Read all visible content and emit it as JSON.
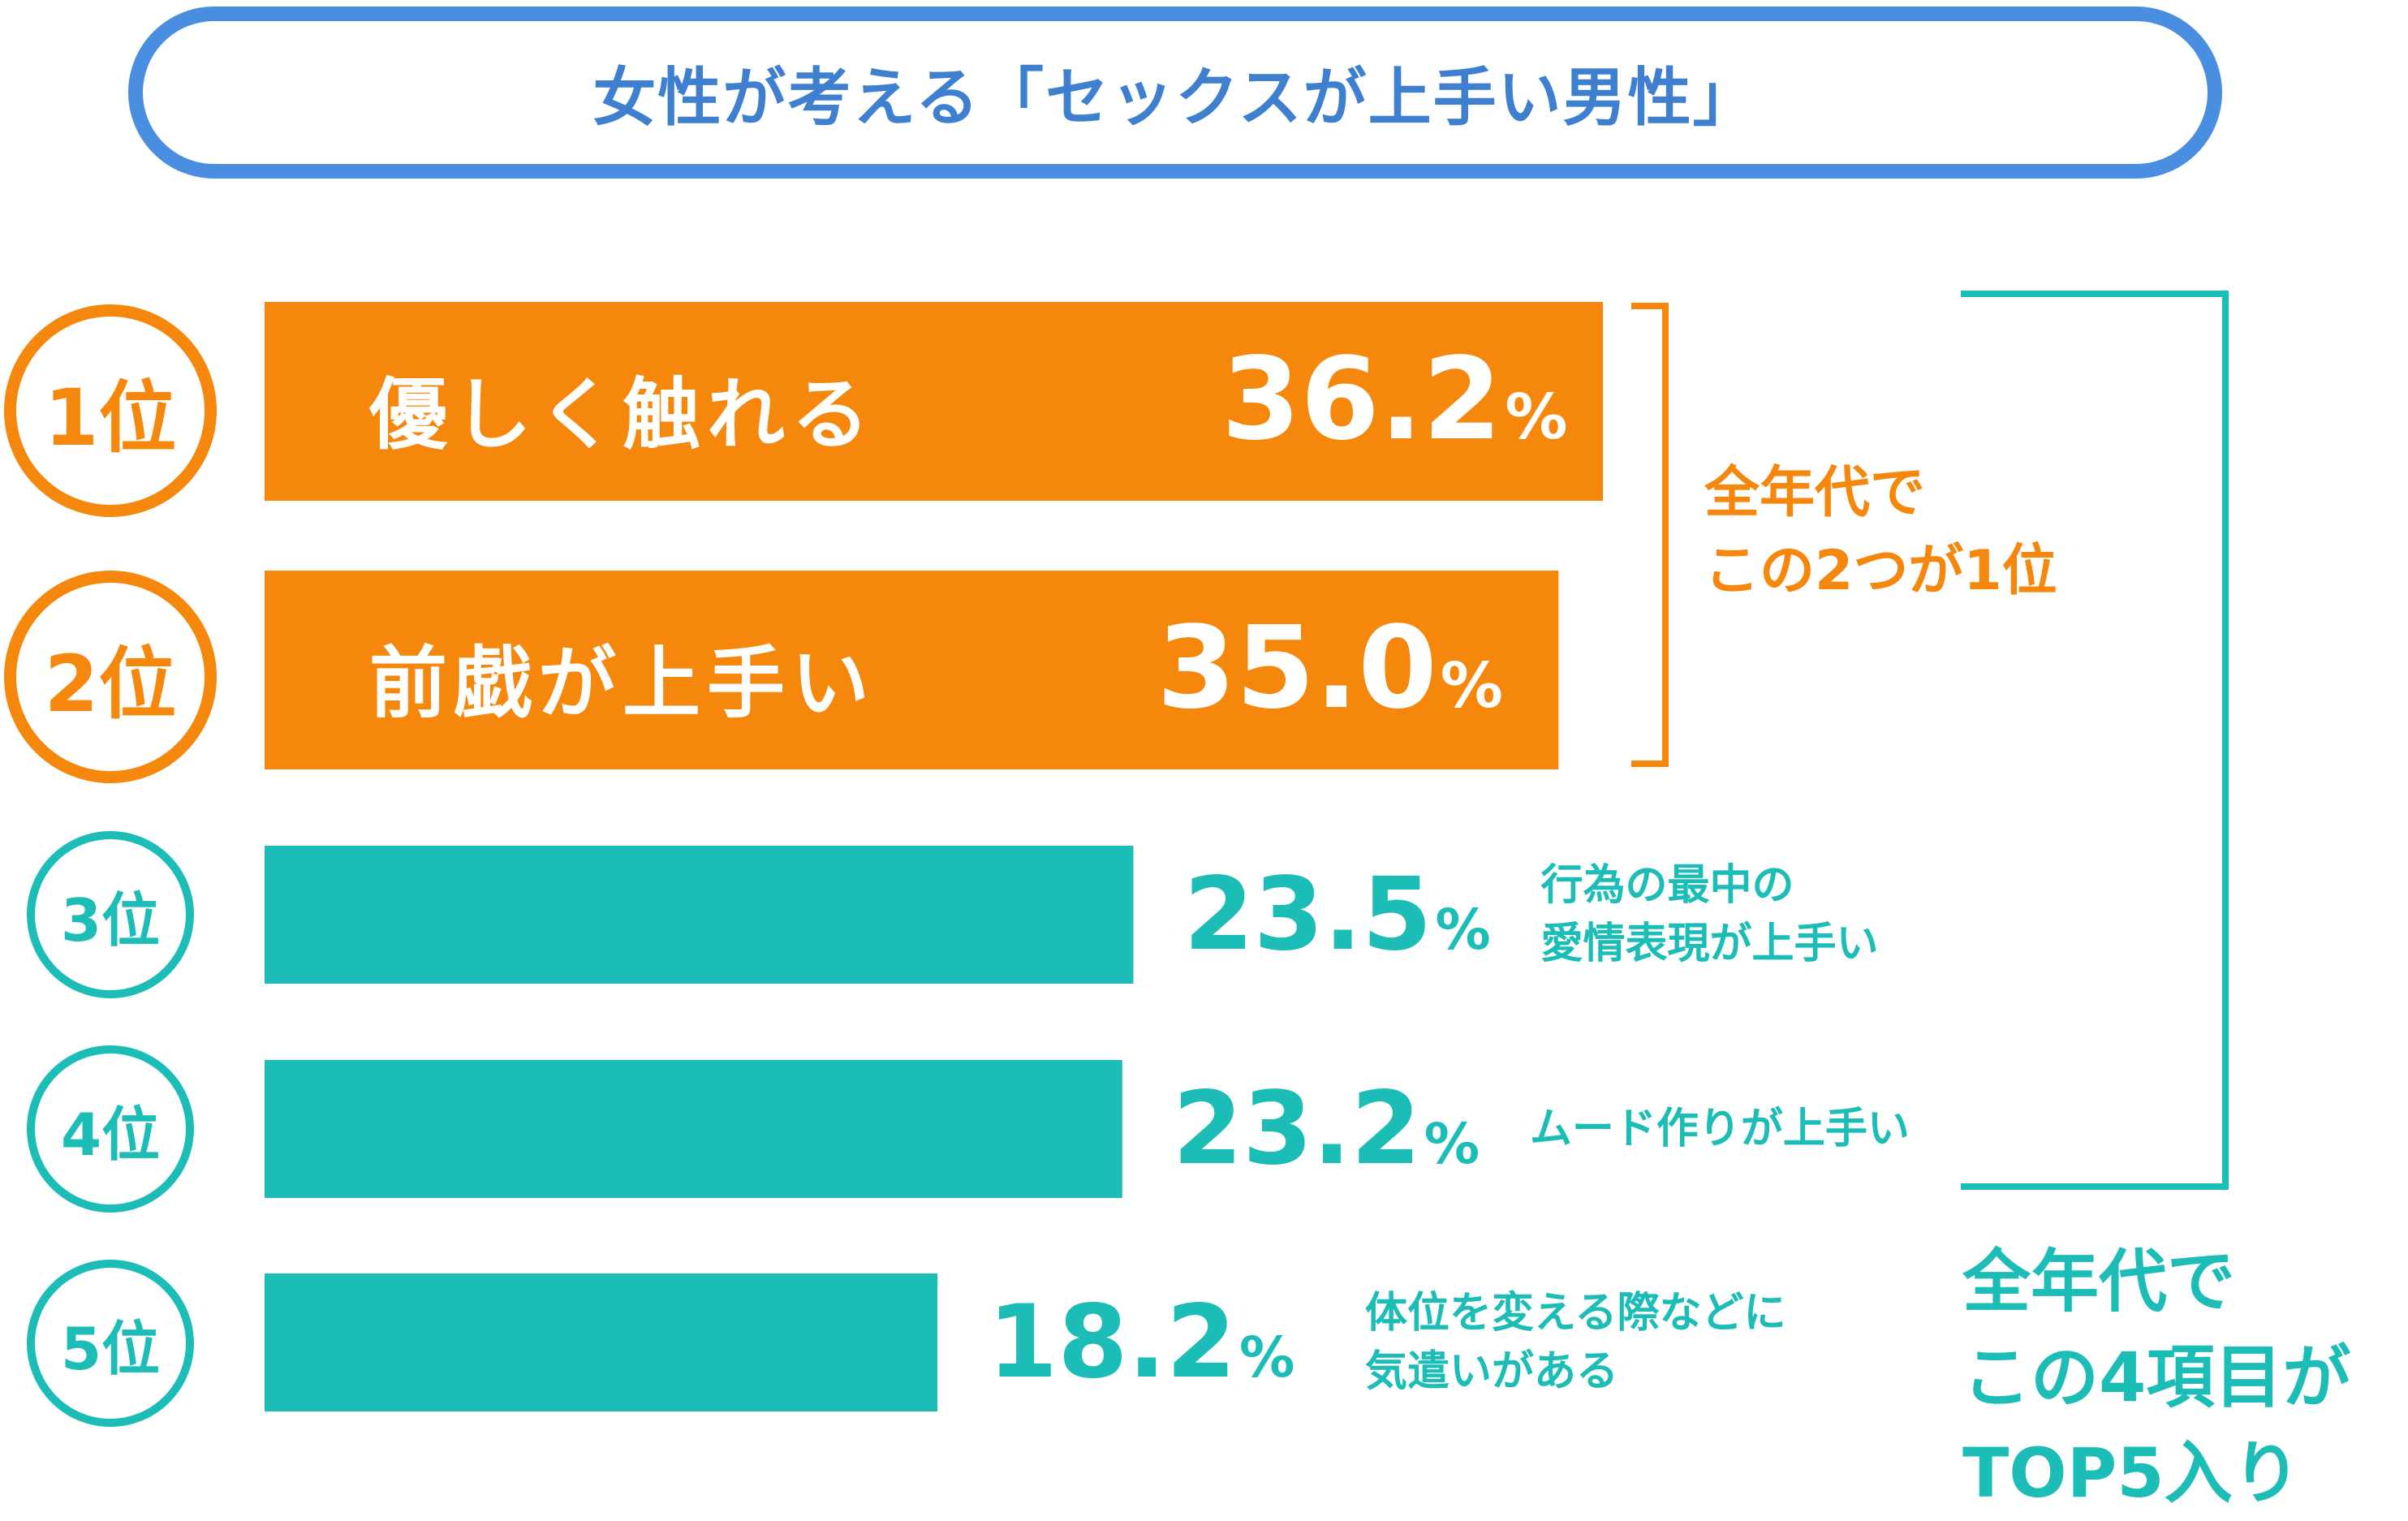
{
  "title": "女性が考える「セックスが上手い男性」",
  "colors": {
    "accent_blue": "#4a8ee2",
    "top_orange": "#f5870d",
    "rest_teal": "#1cbdb7"
  },
  "chart_data": {
    "type": "bar",
    "orientation": "horizontal",
    "title": "女性が考える「セックスが上手い男性」",
    "categories": [
      "優しく触れる",
      "前戯が上手い",
      "行為の最中の愛情表現が上手い",
      "ムード作りが上手い",
      "体位を変える際などに気遣いがある"
    ],
    "ranks": [
      "1位",
      "2位",
      "3位",
      "4位",
      "5位"
    ],
    "values": [
      36.2,
      35.0,
      23.5,
      23.2,
      18.2
    ],
    "value_labels": [
      "36.2",
      "35.0",
      "23.5",
      "23.2",
      "18.2"
    ],
    "unit": "%",
    "xlim": [
      0,
      40
    ],
    "grid": false,
    "bar_colors": [
      "#f5870d",
      "#f5870d",
      "#1cbdb7",
      "#1cbdb7",
      "#1cbdb7"
    ],
    "label_lines": [
      [
        "優しく触れる"
      ],
      [
        "前戯が上手い"
      ],
      [
        "行為の最中の",
        "愛情表現が上手い"
      ],
      [
        "ムード作りが上手い"
      ],
      [
        "体位を変える際などに",
        "気遣いがある"
      ]
    ],
    "annotations": [
      {
        "lines": [
          "全年代で",
          "この2つが1位"
        ],
        "groups": [
          0,
          1
        ],
        "color": "#f5870d"
      },
      {
        "lines": [
          "全年代で",
          "この4項目が",
          "TOP5入り"
        ],
        "groups": [
          0,
          1,
          2,
          3
        ],
        "color": "#1cbdb7"
      }
    ]
  }
}
